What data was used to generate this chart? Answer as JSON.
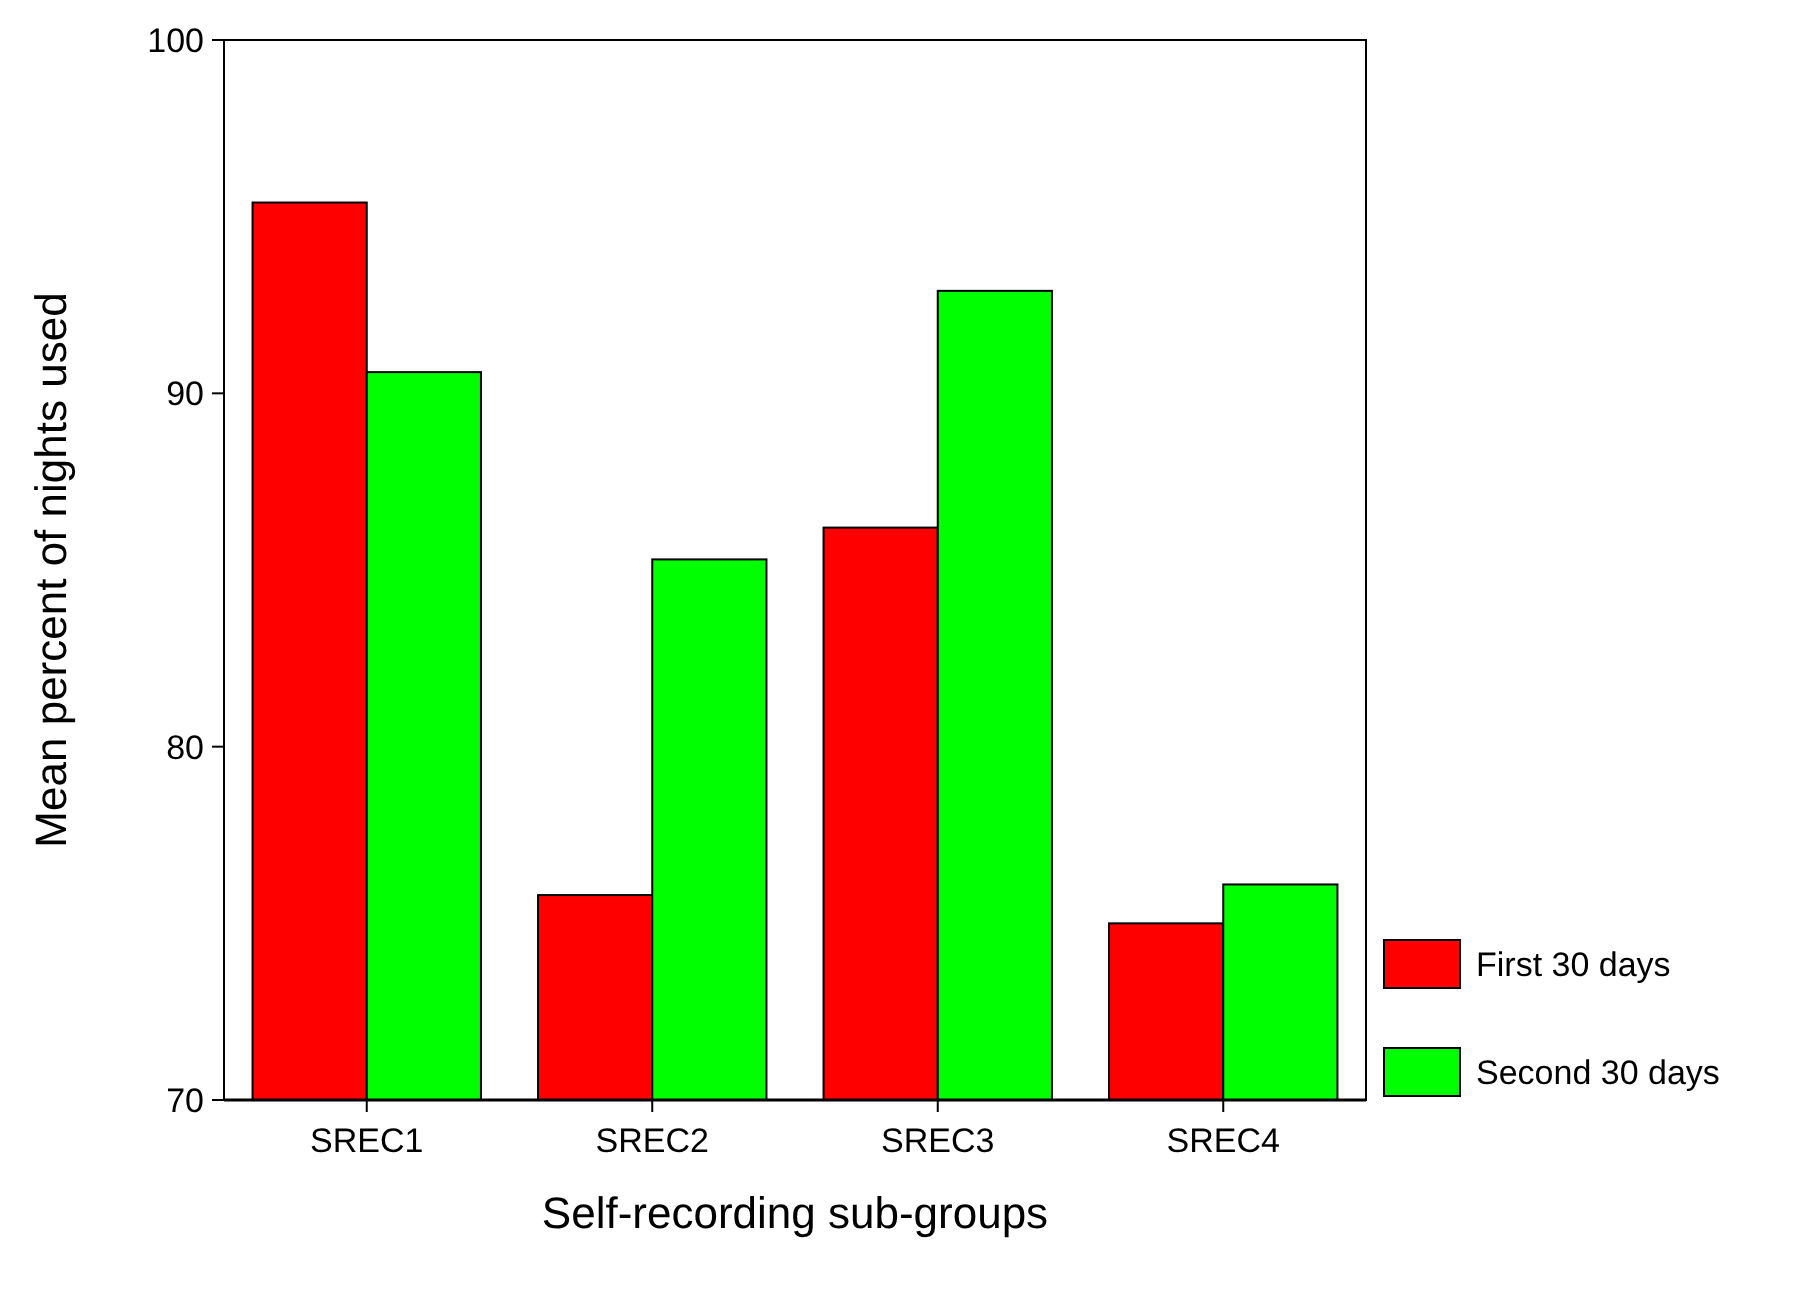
{
  "chart_data": {
    "type": "bar",
    "xlabel": "Self-recording sub-groups",
    "ylabel": "Mean percent of nights used",
    "categories": [
      "SREC1",
      "SREC2",
      "SREC3",
      "SREC4"
    ],
    "series": [
      {
        "name": "First 30 days",
        "color": "#ff0000",
        "values": [
          95.4,
          75.8,
          86.2,
          75.0
        ]
      },
      {
        "name": "Second 30 days",
        "color": "#00ff00",
        "values": [
          90.6,
          85.3,
          92.9,
          76.1
        ]
      }
    ],
    "ylim": [
      70,
      100
    ],
    "yticks": [
      70,
      80,
      90,
      100
    ],
    "grid": false,
    "legend": "bottom right"
  }
}
